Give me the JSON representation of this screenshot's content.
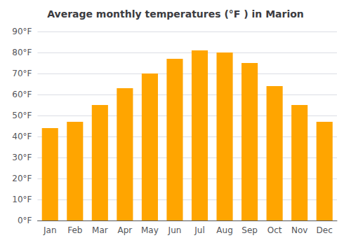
{
  "chart_data": {
    "type": "bar",
    "title": "Average monthly temperatures (°F ) in Marion",
    "categories": [
      "Jan",
      "Feb",
      "Mar",
      "Apr",
      "May",
      "Jun",
      "Jul",
      "Aug",
      "Sep",
      "Oct",
      "Nov",
      "Dec"
    ],
    "values": [
      44,
      47,
      55,
      63,
      70,
      77,
      81,
      80,
      75,
      64,
      55,
      47
    ],
    "color": "#FFA500",
    "ylim": [
      0,
      90
    ],
    "yticks": [
      {
        "value": 0,
        "label": "0°F"
      },
      {
        "value": 10,
        "label": "10°F"
      },
      {
        "value": 20,
        "label": "20°F"
      },
      {
        "value": 30,
        "label": "30°F"
      },
      {
        "value": 40,
        "label": "40°F"
      },
      {
        "value": 50,
        "label": "50°F"
      },
      {
        "value": 60,
        "label": "60°F"
      },
      {
        "value": 70,
        "label": "70°F"
      },
      {
        "value": 80,
        "label": "80°F"
      },
      {
        "value": 90,
        "label": "90°F"
      }
    ],
    "grid": true
  }
}
